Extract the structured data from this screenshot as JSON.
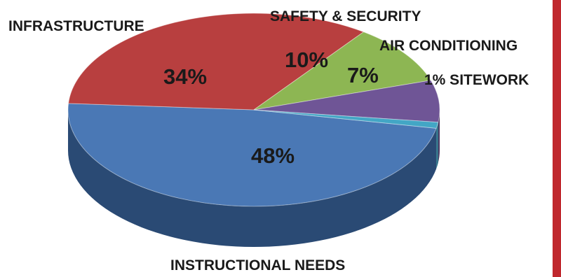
{
  "chart_data": {
    "type": "pie",
    "title": "",
    "categories": [
      "INSTRUCTIONAL NEEDS",
      "INFRASTRUCTURE",
      "SAFETY & SECURITY",
      "AIR CONDITIONING",
      "SITEWORK"
    ],
    "values": [
      48,
      34,
      10,
      7,
      1
    ],
    "value_labels": [
      "48%",
      "34%",
      "10%",
      "7%",
      "1%"
    ],
    "inline_label": "1% SITEWORK",
    "colors": [
      "#4a78b5",
      "#b83f3f",
      "#8db653",
      "#6f5596",
      "#43a6c5"
    ],
    "side_colors": [
      "#2a4a74",
      "#7d2626",
      "#5b7a32",
      "#47355f",
      "#2a6f86"
    ],
    "style": "3d"
  },
  "accent_bar_color": "#c0282e"
}
